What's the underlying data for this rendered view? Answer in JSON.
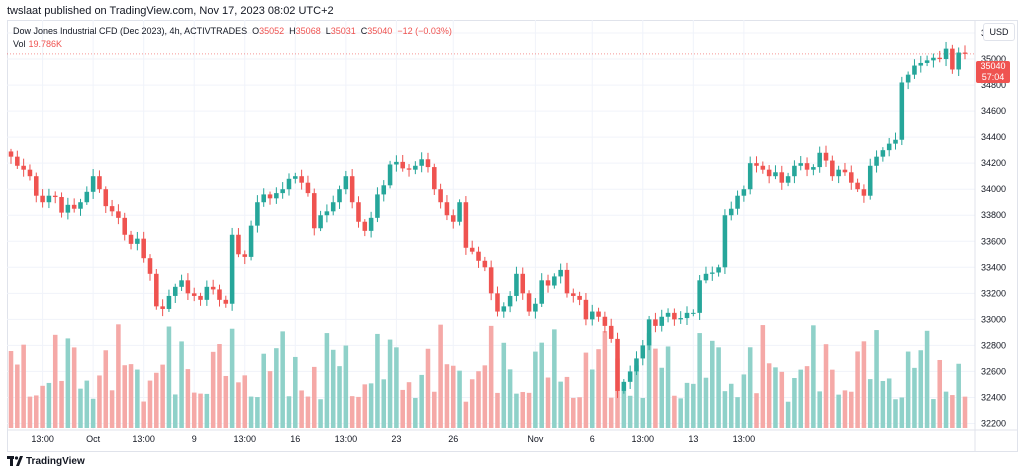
{
  "header": {
    "publish_line": "twslaat published on TradingView.com, Nov 17, 2023 08:02 UTC+2"
  },
  "legend": {
    "symbol": "Dow Jones Industrial CFD (Dec 2023), 4h, ACTIVTRADES",
    "o_label": "O",
    "o_value": "35052",
    "h_label": "H",
    "h_value": "35068",
    "l_label": "L",
    "l_value": "35031",
    "c_label": "C",
    "c_value": "35040",
    "change": "−12 (−0.03%)",
    "vol_label": "Vol",
    "vol_value": "19.786K"
  },
  "axis": {
    "currency": "USD"
  },
  "last_price": {
    "price": "35040",
    "countdown": "57:04"
  },
  "footer": {
    "brand": "TradingView"
  },
  "colors": {
    "up": "#26a69a",
    "down": "#ef5350",
    "vol_up": "#8fd1c9",
    "vol_down": "#f5a9a7",
    "grid": "#f0f3fa"
  },
  "chart_data": {
    "type": "candlestick",
    "ylim": [
      32150,
      35300
    ],
    "y_ticks": [
      32200,
      32400,
      32600,
      32800,
      33000,
      33200,
      33400,
      33600,
      33800,
      34000,
      34200,
      34400,
      34600,
      34800,
      35000,
      35200
    ],
    "x_labels": [
      {
        "label": "13:00",
        "index": 5
      },
      {
        "label": "Oct",
        "index": 13
      },
      {
        "label": "13:00",
        "index": 21
      },
      {
        "label": "9",
        "index": 29
      },
      {
        "label": "13:00",
        "index": 37
      },
      {
        "label": "16",
        "index": 45
      },
      {
        "label": "13:00",
        "index": 53
      },
      {
        "label": "23",
        "index": 61
      },
      {
        "label": "26",
        "index": 70
      },
      {
        "label": "Nov",
        "index": 83
      },
      {
        "label": "6",
        "index": 92
      },
      {
        "label": "13:00",
        "index": 100
      },
      {
        "label": "13",
        "index": 108
      },
      {
        "label": "13:00",
        "index": 116
      }
    ],
    "closes": [
      34250,
      34180,
      34150,
      34100,
      33950,
      33900,
      33950,
      33940,
      33820,
      33880,
      33850,
      33900,
      33980,
      34100,
      34000,
      33870,
      33830,
      33780,
      33650,
      33580,
      33620,
      33470,
      33350,
      33100,
      33080,
      33180,
      33250,
      33300,
      33200,
      33180,
      33150,
      33250,
      33230,
      33150,
      33120,
      33650,
      33500,
      33480,
      33720,
      33900,
      33960,
      33930,
      33970,
      34000,
      34080,
      34100,
      34050,
      33970,
      33700,
      33800,
      33830,
      33900,
      34000,
      34100,
      33900,
      33750,
      33680,
      33780,
      33960,
      34030,
      34190,
      34210,
      34160,
      34150,
      34180,
      34230,
      34170,
      34000,
      33900,
      33800,
      33750,
      33900,
      33550,
      33520,
      33450,
      33400,
      33200,
      33060,
      33100,
      33180,
      33350,
      33200,
      33060,
      33120,
      33300,
      33260,
      33330,
      33380,
      33200,
      33180,
      33150,
      33000,
      33060,
      33020,
      32950,
      32850,
      32450,
      32520,
      32600,
      32700,
      32800,
      33000,
      32950,
      33020,
      33050,
      33000,
      33010,
      33050,
      33050,
      33300,
      33350,
      33360,
      33400,
      33800,
      33850,
      33950,
      34000,
      34200,
      34180,
      34150,
      34100,
      34130,
      34050,
      34100,
      34180,
      34200,
      34150,
      34170,
      34280,
      34220,
      34100,
      34150,
      34130,
      34050,
      34000,
      33950,
      34180,
      34250,
      34300,
      34350,
      34380,
      34820,
      34880,
      34950,
      34970,
      34990,
      35010,
      35000,
      35080,
      34920,
      35050,
      35040
    ],
    "volume_summary": "Vol 19.786K"
  }
}
